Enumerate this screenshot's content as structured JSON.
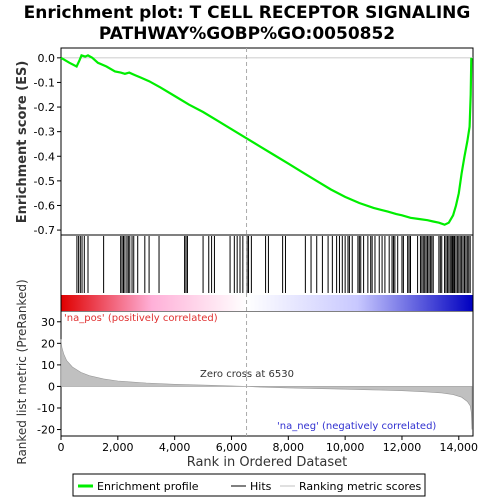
{
  "title_line1": "Enrichment plot: T CELL RECEPTOR SIGNALING",
  "title_line2": "PATHWAY%GOBP%GO:0050852",
  "chart_data": [
    {
      "type": "line",
      "name": "es-panel",
      "ylabel": "Enrichment score (ES)",
      "xlim": [
        0,
        14500
      ],
      "ylim": [
        -0.72,
        0.04
      ],
      "yticks": [
        0.0,
        -0.1,
        -0.2,
        -0.3,
        -0.4,
        -0.5,
        -0.6,
        -0.7
      ],
      "ytick_labels": [
        "0.0",
        "-0.1",
        "-0.2",
        "-0.3",
        "-0.4",
        "-0.5",
        "-0.6",
        "-0.7"
      ],
      "color": "#00ee00",
      "x": [
        0,
        300,
        550,
        650,
        720,
        850,
        950,
        1100,
        1300,
        1600,
        1900,
        2100,
        2250,
        2400,
        2600,
        2800,
        3100,
        3500,
        4000,
        4500,
        5000,
        5500,
        6000,
        6500,
        7000,
        7500,
        8000,
        8500,
        9000,
        9500,
        10000,
        10500,
        11000,
        11500,
        11800,
        12000,
        12300,
        12600,
        12900,
        13100,
        13300,
        13500,
        13650,
        13800,
        13900,
        14000,
        14100,
        14200,
        14300,
        14380,
        14420,
        14440
      ],
      "y": [
        0.0,
        -0.02,
        -0.035,
        -0.01,
        0.01,
        0.005,
        0.01,
        0.0,
        -0.02,
        -0.035,
        -0.055,
        -0.06,
        -0.065,
        -0.06,
        -0.07,
        -0.08,
        -0.095,
        -0.12,
        -0.155,
        -0.19,
        -0.22,
        -0.255,
        -0.29,
        -0.325,
        -0.36,
        -0.395,
        -0.43,
        -0.465,
        -0.5,
        -0.535,
        -0.565,
        -0.59,
        -0.61,
        -0.625,
        -0.635,
        -0.64,
        -0.65,
        -0.655,
        -0.66,
        -0.665,
        -0.67,
        -0.678,
        -0.67,
        -0.64,
        -0.6,
        -0.55,
        -0.47,
        -0.4,
        -0.34,
        -0.28,
        -0.15,
        0.0
      ]
    },
    {
      "type": "scatter",
      "name": "hits",
      "x": [
        560,
        620,
        680,
        740,
        820,
        950,
        1500,
        2100,
        2150,
        2200,
        2250,
        2320,
        2370,
        2420,
        2500,
        2560,
        2700,
        2950,
        3100,
        3450,
        4350,
        4400,
        4450,
        5000,
        5200,
        5300,
        5400,
        5950,
        6100,
        6200,
        6300,
        6400,
        6550,
        6600,
        6700,
        7200,
        7300,
        7800,
        7900,
        8600,
        8800,
        9000,
        9200,
        9400,
        9550,
        9700,
        9800,
        9900,
        10000,
        10100,
        10150,
        10250,
        10450,
        10500,
        10550,
        10650,
        10800,
        10900,
        10950,
        11050,
        11200,
        11300,
        11400,
        11550,
        11650,
        11700,
        11750,
        11850,
        12000,
        12050,
        12200,
        12250,
        12300,
        12550,
        12650,
        12700,
        12750,
        12800,
        12850,
        12900,
        12950,
        13000,
        13050,
        13100,
        13300,
        13350,
        13400,
        13500,
        13550,
        13600,
        13650,
        13700,
        13750,
        13780,
        13820,
        13850,
        13900,
        13950,
        14000,
        14050,
        14100,
        14150,
        14200,
        14250,
        14300,
        14350,
        14400
      ]
    },
    {
      "type": "heatmap",
      "name": "rank-colorbar",
      "x_range": [
        0,
        14500
      ],
      "colors": [
        "#e00000",
        "#ffb0d8",
        "#ffffff",
        "#c8c8ff",
        "#0000c0"
      ]
    },
    {
      "type": "area",
      "name": "ranked-metric",
      "ylabel": "Ranked list metric (PreRanked)",
      "xlabel": "Rank in Ordered Dataset",
      "xlim": [
        0,
        14500
      ],
      "ylim": [
        -23,
        35
      ],
      "xticks": [
        0,
        2000,
        4000,
        6000,
        8000,
        10000,
        12000,
        14000
      ],
      "xtick_labels": [
        "0",
        "2,000",
        "4,000",
        "6,000",
        "8,000",
        "10,000",
        "12,000",
        "14,000"
      ],
      "yticks": [
        30,
        20,
        10,
        0,
        -10,
        -20
      ],
      "ytick_labels": [
        "30",
        "20",
        "10",
        "0",
        "-10",
        "-20"
      ],
      "x": [
        0,
        30,
        100,
        200,
        400,
        700,
        1000,
        1500,
        2000,
        3000,
        4000,
        5000,
        6000,
        6530,
        7000,
        8000,
        9000,
        10000,
        11000,
        12000,
        12800,
        13400,
        13800,
        14100,
        14300,
        14400,
        14440,
        14460
      ],
      "y": [
        22,
        18,
        15,
        12,
        9,
        6.5,
        5,
        3.5,
        2.5,
        1.6,
        1.0,
        0.6,
        0.25,
        0,
        -0.3,
        -0.7,
        -1.0,
        -1.3,
        -1.6,
        -2.0,
        -2.5,
        -3.0,
        -3.8,
        -5,
        -7,
        -9,
        -12,
        -20
      ],
      "zero_cross_x": 6530,
      "zero_cross_label": "Zero cross at 6530",
      "pos_label": "'na_pos' (positively correlated)",
      "neg_label": "'na_neg' (negatively correlated)"
    }
  ],
  "legend": {
    "items": [
      {
        "label": "Enrichment profile",
        "color": "#00ee00"
      },
      {
        "label": "Hits",
        "color": "#000000"
      },
      {
        "label": "Ranking metric scores",
        "color": "#c0c0c0"
      }
    ]
  }
}
